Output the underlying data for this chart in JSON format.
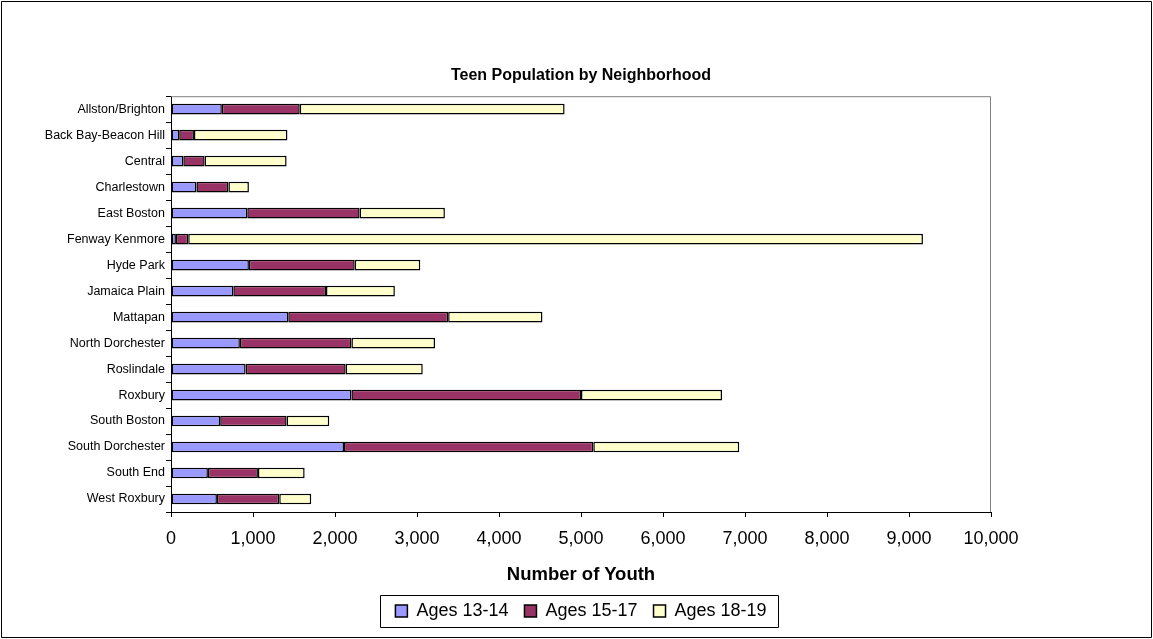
{
  "chart_data": {
    "type": "bar",
    "title": "Teen Population by Neighborhood",
    "xlabel": "Number of Youth",
    "orientation": "horizontal",
    "stacked": true,
    "legend": "bottom",
    "categories": [
      "Allston/Brighton",
      "Back Bay-Beacon Hill",
      "Central",
      "Charlestown",
      "East Boston",
      "Fenway Kenmore",
      "Hyde Park",
      "Jamaica Plain",
      "Mattapan",
      "North Dorchester",
      "Roslindale",
      "Roxbury",
      "South Boston",
      "South Dorchester",
      "South End",
      "West Roxbury"
    ],
    "series": [
      {
        "name": "Ages 13-14",
        "color": "#9999ff",
        "values": [
          620,
          100,
          150,
          310,
          930,
          60,
          950,
          760,
          1430,
          840,
          910,
          2200,
          600,
          2110,
          450,
          560
        ]
      },
      {
        "name": "Ages 15-17",
        "color": "#993366",
        "values": [
          950,
          180,
          260,
          390,
          1370,
          150,
          1290,
          1130,
          1950,
          1360,
          1220,
          2800,
          810,
          3040,
          610,
          760
        ]
      },
      {
        "name": "Ages 18-19",
        "color": "#ffffcc",
        "values": [
          3230,
          1140,
          1000,
          250,
          1040,
          8960,
          800,
          840,
          1150,
          1020,
          940,
          1720,
          520,
          1780,
          570,
          390
        ]
      }
    ],
    "xlim": [
      0,
      10000
    ],
    "xticks": [
      0,
      {
        "value": 1000,
        "label": "1,000"
      },
      {
        "value": 2000,
        "label": "2,000"
      },
      {
        "value": 3000,
        "label": "3,000"
      },
      {
        "value": 4000,
        "label": "4,000"
      },
      {
        "value": 5000,
        "label": "5,000"
      },
      {
        "value": 6000,
        "label": "6,000"
      },
      {
        "value": 7000,
        "label": "7,000"
      },
      {
        "value": 8000,
        "label": "8,000"
      },
      {
        "value": 9000,
        "label": "9,000"
      },
      {
        "value": 10000,
        "label": "10,000"
      }
    ]
  }
}
